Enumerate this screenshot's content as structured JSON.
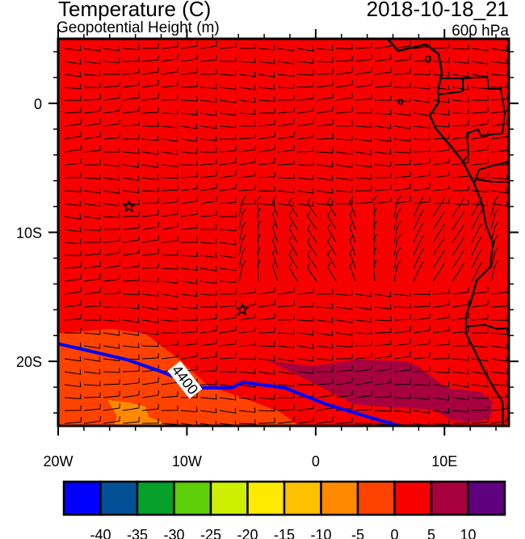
{
  "header": {
    "title": "Temperature (C)",
    "subtitle": "Geopotential Height (m)",
    "datetime": "2018-10-18_21",
    "level": "600 hPa"
  },
  "map": {
    "lon_range": [
      -20,
      15
    ],
    "lat_range": [
      -25,
      5
    ],
    "lat_ticks": [
      {
        "value": 0,
        "label": "0"
      },
      {
        "value": -10,
        "label": "10S"
      },
      {
        "value": -20,
        "label": "20S"
      }
    ],
    "lon_ticks": [
      {
        "value": -20,
        "label": "20W"
      },
      {
        "value": -10,
        "label": "10W"
      },
      {
        "value": 0,
        "label": "0"
      },
      {
        "value": 10,
        "label": "10E"
      }
    ],
    "contour": {
      "value": 4400,
      "label": "4400",
      "color": "#0000ff"
    },
    "markers": [
      {
        "type": "star",
        "lon": -14.5,
        "lat": -8.0
      },
      {
        "type": "star",
        "lon": -5.7,
        "lat": -16.0
      }
    ],
    "background_fill": "#f80000",
    "overlay": "wind-barbs"
  },
  "colorbar": {
    "colors": [
      "#0000ff",
      "#045096",
      "#06a02a",
      "#5ccf0a",
      "#cdf000",
      "#ffe900",
      "#ffc000",
      "#ff8a00",
      "#ff4200",
      "#f80000",
      "#a8003f",
      "#5f007f"
    ],
    "labels": [
      "-40",
      "-35",
      "-30",
      "-25",
      "-20",
      "-15",
      "-10",
      "-5",
      "0",
      "5",
      "10"
    ]
  }
}
